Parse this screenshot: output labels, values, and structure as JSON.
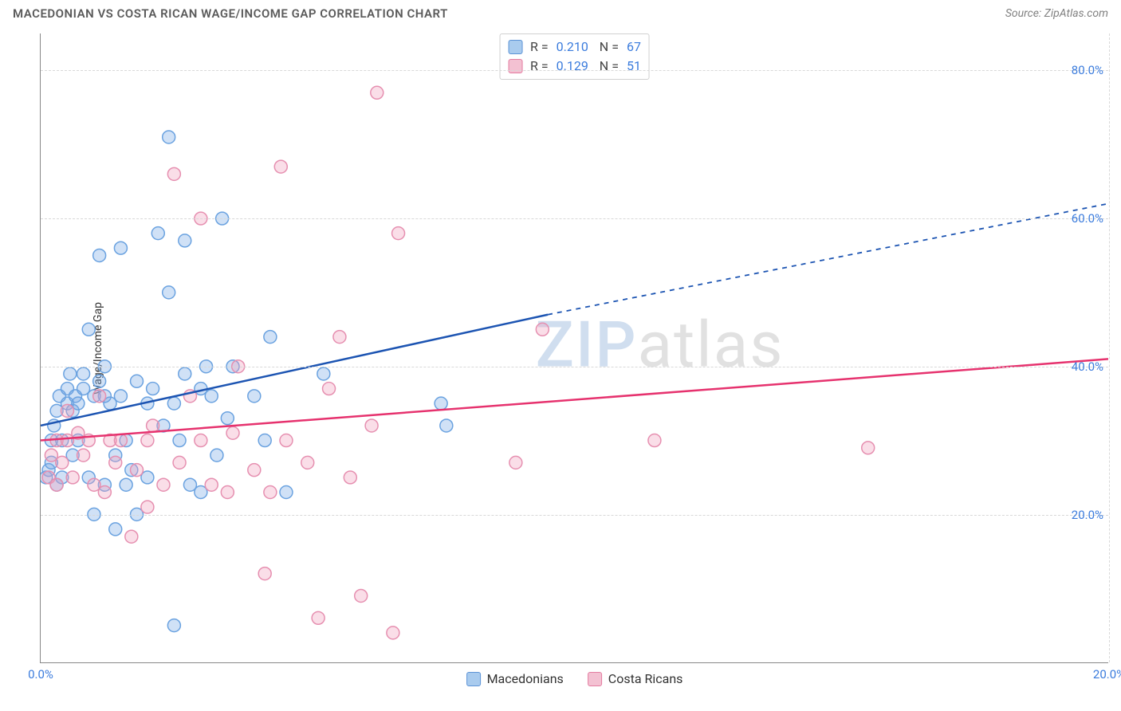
{
  "header": {
    "title": "MACEDONIAN VS COSTA RICAN WAGE/INCOME GAP CORRELATION CHART",
    "source": "Source: ZipAtlas.com"
  },
  "chart": {
    "type": "scatter",
    "ylabel": "Wage/Income Gap",
    "xlim": [
      0,
      20
    ],
    "ylim": [
      0,
      85
    ],
    "xtick_positions": [
      0,
      20
    ],
    "xtick_labels": [
      "0.0%",
      "20.0%"
    ],
    "ytick_positions": [
      20,
      40,
      60,
      80
    ],
    "ytick_labels": [
      "20.0%",
      "40.0%",
      "60.0%",
      "80.0%"
    ],
    "tick_color": "#3b7cdd",
    "grid_color": "#d8d8d8",
    "background_color": "#ffffff",
    "axis_color": "#888888",
    "marker_radius": 8,
    "marker_stroke_width": 1.5,
    "watermark": {
      "z": "ZIP",
      "rest": "atlas"
    },
    "series": [
      {
        "name": "Macedonians",
        "fill_color": "rgba(120,170,230,0.35)",
        "stroke_color": "#6aa2e0",
        "swatch_fill": "#a9cbee",
        "swatch_border": "#5c93d6",
        "r": "0.210",
        "n": "67",
        "trend": {
          "color": "#1c54b2",
          "width": 2.5,
          "solid_start": [
            0,
            32
          ],
          "solid_end": [
            9.5,
            47
          ],
          "dash_start": [
            9.5,
            47
          ],
          "dash_end": [
            20,
            62
          ]
        },
        "points": [
          [
            0.1,
            25
          ],
          [
            0.15,
            26
          ],
          [
            0.2,
            27
          ],
          [
            0.2,
            30
          ],
          [
            0.25,
            32
          ],
          [
            0.3,
            24
          ],
          [
            0.3,
            34
          ],
          [
            0.35,
            36
          ],
          [
            0.4,
            25
          ],
          [
            0.4,
            30
          ],
          [
            0.5,
            35
          ],
          [
            0.5,
            37
          ],
          [
            0.55,
            39
          ],
          [
            0.6,
            28
          ],
          [
            0.6,
            34
          ],
          [
            0.65,
            36
          ],
          [
            0.7,
            30
          ],
          [
            0.7,
            35
          ],
          [
            0.8,
            37
          ],
          [
            0.8,
            39
          ],
          [
            0.9,
            25
          ],
          [
            0.9,
            45
          ],
          [
            1.0,
            20
          ],
          [
            1.0,
            36
          ],
          [
            1.1,
            38
          ],
          [
            1.1,
            55
          ],
          [
            1.2,
            24
          ],
          [
            1.2,
            40
          ],
          [
            1.3,
            35
          ],
          [
            1.4,
            18
          ],
          [
            1.4,
            28
          ],
          [
            1.5,
            36
          ],
          [
            1.5,
            56
          ],
          [
            1.6,
            24
          ],
          [
            1.6,
            30
          ],
          [
            1.7,
            26
          ],
          [
            1.8,
            20
          ],
          [
            1.8,
            38
          ],
          [
            2.0,
            35
          ],
          [
            2.0,
            25
          ],
          [
            2.1,
            37
          ],
          [
            2.2,
            58
          ],
          [
            2.3,
            32
          ],
          [
            2.4,
            50
          ],
          [
            2.4,
            71
          ],
          [
            2.5,
            35
          ],
          [
            2.6,
            30
          ],
          [
            2.7,
            39
          ],
          [
            2.7,
            57
          ],
          [
            2.8,
            24
          ],
          [
            3.0,
            23
          ],
          [
            3.0,
            37
          ],
          [
            3.1,
            40
          ],
          [
            3.2,
            36
          ],
          [
            3.3,
            28
          ],
          [
            3.4,
            60
          ],
          [
            3.5,
            33
          ],
          [
            3.6,
            40
          ],
          [
            4.0,
            36
          ],
          [
            4.2,
            30
          ],
          [
            4.3,
            44
          ],
          [
            4.6,
            23
          ],
          [
            5.3,
            39
          ],
          [
            7.5,
            35
          ],
          [
            7.6,
            32
          ],
          [
            2.5,
            5
          ],
          [
            1.2,
            36
          ]
        ]
      },
      {
        "name": "Costa Ricans",
        "fill_color": "rgba(240,160,190,0.35)",
        "stroke_color": "#e68fb0",
        "swatch_fill": "#f3c1d2",
        "swatch_border": "#e47ca0",
        "r": "0.129",
        "n": "51",
        "trend": {
          "color": "#e6326e",
          "width": 2.5,
          "solid_start": [
            0,
            30
          ],
          "solid_end": [
            20,
            41
          ],
          "dash_start": null,
          "dash_end": null
        },
        "points": [
          [
            0.15,
            25
          ],
          [
            0.2,
            28
          ],
          [
            0.3,
            30
          ],
          [
            0.3,
            24
          ],
          [
            0.4,
            27
          ],
          [
            0.5,
            30
          ],
          [
            0.5,
            34
          ],
          [
            0.6,
            25
          ],
          [
            0.7,
            31
          ],
          [
            0.8,
            28
          ],
          [
            0.9,
            30
          ],
          [
            1.0,
            24
          ],
          [
            1.1,
            36
          ],
          [
            1.2,
            23
          ],
          [
            1.3,
            30
          ],
          [
            1.4,
            27
          ],
          [
            1.5,
            30
          ],
          [
            1.7,
            17
          ],
          [
            1.8,
            26
          ],
          [
            2.0,
            21
          ],
          [
            2.0,
            30
          ],
          [
            2.1,
            32
          ],
          [
            2.3,
            24
          ],
          [
            2.5,
            66
          ],
          [
            2.6,
            27
          ],
          [
            2.8,
            36
          ],
          [
            3.0,
            30
          ],
          [
            3.0,
            60
          ],
          [
            3.2,
            24
          ],
          [
            3.5,
            23
          ],
          [
            3.6,
            31
          ],
          [
            3.7,
            40
          ],
          [
            4.0,
            26
          ],
          [
            4.2,
            12
          ],
          [
            4.3,
            23
          ],
          [
            4.5,
            67
          ],
          [
            4.6,
            30
          ],
          [
            5.0,
            27
          ],
          [
            5.2,
            6
          ],
          [
            5.4,
            37
          ],
          [
            5.6,
            44
          ],
          [
            5.8,
            25
          ],
          [
            6.0,
            9
          ],
          [
            6.2,
            32
          ],
          [
            6.3,
            77
          ],
          [
            6.6,
            4
          ],
          [
            6.7,
            58
          ],
          [
            8.9,
            27
          ],
          [
            9.4,
            45
          ],
          [
            11.5,
            30
          ],
          [
            15.5,
            29
          ]
        ]
      }
    ],
    "bottom_legend": [
      {
        "label": "Macedonians",
        "fill": "#a9cbee",
        "border": "#5c93d6"
      },
      {
        "label": "Costa Ricans",
        "fill": "#f3c1d2",
        "border": "#e47ca0"
      }
    ]
  }
}
